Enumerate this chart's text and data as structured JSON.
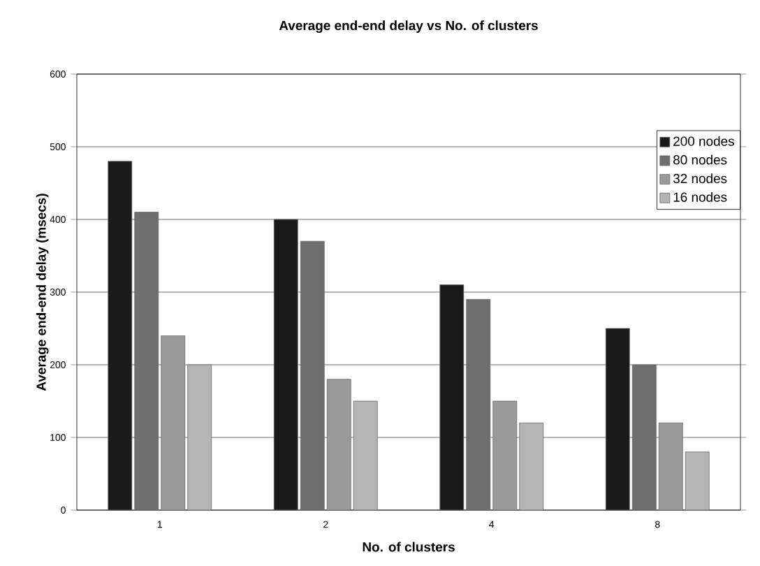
{
  "chart_data": {
    "type": "bar",
    "title": "Average end-end delay vs No. of clusters",
    "xlabel": "No. of clusters",
    "ylabel": "Average end-end delay (msecs)",
    "categories": [
      "1",
      "2",
      "4",
      "8"
    ],
    "series": [
      {
        "name": "200 nodes",
        "color": "#1a1a1a",
        "values": [
          480,
          400,
          310,
          250
        ]
      },
      {
        "name": "80 nodes",
        "color": "#6e6e6e",
        "values": [
          410,
          370,
          290,
          200
        ]
      },
      {
        "name": "32 nodes",
        "color": "#9a9a9a",
        "values": [
          240,
          180,
          150,
          120
        ]
      },
      {
        "name": "16 nodes",
        "color": "#b4b4b4",
        "values": [
          200,
          150,
          120,
          80
        ]
      }
    ],
    "ylim": [
      0,
      600
    ],
    "yticks": [
      0,
      100,
      200,
      300,
      400,
      500,
      600
    ],
    "grid": "y",
    "legend": "right"
  }
}
